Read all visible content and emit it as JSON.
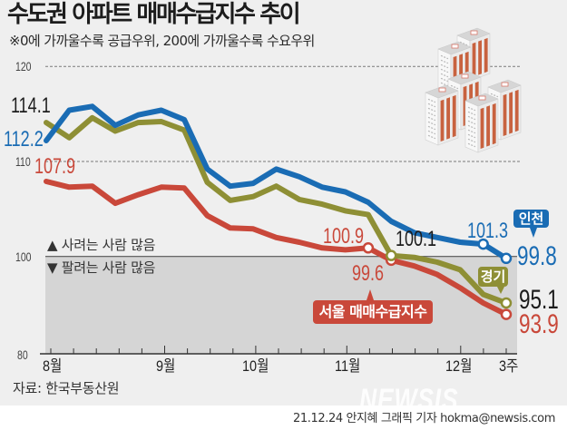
{
  "header": {
    "title": "수도권 아파트 매매수급지수 추이",
    "subtitle": "※0에 가까울수록 공급우위, 200에 가까울수록 수요우위"
  },
  "legend": {
    "above": "▲ 사려는 사람 많음",
    "below": "▼ 팔려는 사람 많음"
  },
  "source": "자료: 한국부동산원",
  "credit": "21.12.24 안지혜 그래픽 기자 hokma@newsis.com",
  "watermark": "NEWSIS",
  "colors": {
    "background": "#efefef",
    "shade": "#d5d5d5",
    "reference_line": "#555555"
  },
  "chart_data": {
    "type": "line",
    "title": "수도권 아파트 매매수급지수 추이",
    "subtitle": "※0에 가까울수록 공급우위, 200에 가까울수록 수요우위",
    "xlabel": "",
    "ylabel": "",
    "x_tick_labels": [
      {
        "label": "8월",
        "index": 0
      },
      {
        "label": "9월",
        "index": 5
      },
      {
        "label": "10월",
        "index": 9
      },
      {
        "label": "11월",
        "index": 13
      },
      {
        "label": "12월",
        "index": 18
      },
      {
        "label": "3주",
        "index": 20
      }
    ],
    "y_ticks": [
      120,
      110,
      100,
      80
    ],
    "ylim": [
      80,
      120
    ],
    "grid": true,
    "reference_line": 100,
    "shaded_below_reference": true,
    "series": [
      {
        "name": "서울 매매수급지수",
        "color": "#c9483a",
        "values": [
          107.9,
          107.3,
          107.4,
          105.6,
          106.5,
          107.3,
          107.2,
          104.3,
          103.0,
          102.9,
          102.0,
          101.5,
          100.9,
          100.7,
          100.9,
          99.6,
          99.0,
          98.1,
          96.7,
          95.1,
          93.9
        ],
        "markers": [
          14,
          15,
          20
        ]
      },
      {
        "name": "경기",
        "color": "#8e8f35",
        "values": [
          114.1,
          112.5,
          114.6,
          113.2,
          114.1,
          114.2,
          113.3,
          107.8,
          105.9,
          106.3,
          107.4,
          106.0,
          105.5,
          104.8,
          104.4,
          100.1,
          99.9,
          99.4,
          98.6,
          96.0,
          95.1
        ],
        "markers": [
          15,
          20
        ]
      },
      {
        "name": "인천",
        "color": "#1a6cb4",
        "values": [
          112.2,
          115.4,
          115.8,
          113.8,
          114.9,
          115.4,
          114.4,
          109.2,
          107.4,
          107.7,
          109.2,
          108.4,
          107.3,
          106.8,
          105.7,
          103.7,
          102.5,
          102.0,
          101.5,
          101.3,
          99.8
        ],
        "markers": [
          19,
          20
        ]
      }
    ],
    "annotations": [
      {
        "series": "경기",
        "index": 0,
        "text": "114.1"
      },
      {
        "series": "인천",
        "index": 0,
        "text": "112.2"
      },
      {
        "series": "서울 매매수급지수",
        "index": 0,
        "text": "107.9"
      },
      {
        "series": "서울 매매수급지수",
        "index": 14,
        "text": "100.9"
      },
      {
        "series": "경기",
        "index": 15,
        "text": "100.1"
      },
      {
        "series": "서울 매매수급지수",
        "index": 15,
        "text": "99.6"
      },
      {
        "series": "인천",
        "index": 19,
        "text": "101.3"
      },
      {
        "series": "인천",
        "index": 20,
        "text": "99.8"
      },
      {
        "series": "경기",
        "index": 20,
        "text": "95.1"
      },
      {
        "series": "서울 매매수급지수",
        "index": 20,
        "text": "93.9"
      }
    ]
  }
}
